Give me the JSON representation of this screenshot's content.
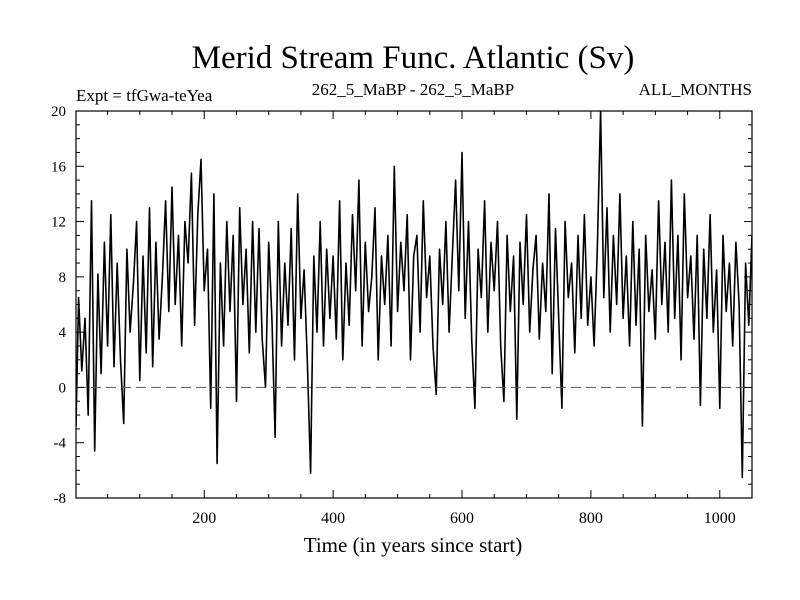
{
  "chart_data": {
    "type": "line",
    "title": "Merid Stream Func. Atlantic (Sv)",
    "subtitle_left": "Expt = tfGwa-teYea",
    "subtitle_center": "262_5_MaBP - 262_5_MaBP",
    "subtitle_right": "ALL_MONTHS",
    "xlabel": "Time (in years since start)",
    "ylabel": "",
    "xlim": [
      1,
      1050
    ],
    "ylim": [
      -8,
      20
    ],
    "xticks": [
      200,
      400,
      600,
      800,
      1000
    ],
    "yticks": [
      -8,
      -4,
      0,
      4,
      8,
      12,
      16,
      20
    ],
    "reference_line": {
      "y": 0,
      "style": "dashed"
    },
    "grid": false,
    "legend": "none",
    "line_color": "#000000",
    "series": [
      {
        "x": [
          1,
          5,
          10,
          15,
          20,
          25,
          30,
          35,
          40,
          45,
          50,
          55,
          60,
          65,
          70,
          75,
          80,
          85,
          90,
          95,
          100,
          105,
          110,
          115,
          120,
          125,
          130,
          135,
          140,
          145,
          150,
          155,
          160,
          165,
          170,
          175,
          180,
          185,
          190,
          195,
          200,
          205,
          210,
          215,
          220,
          225,
          230,
          235,
          240,
          245,
          250,
          255,
          260,
          265,
          270,
          275,
          280,
          285,
          290,
          295,
          300,
          305,
          310,
          315,
          320,
          325,
          330,
          335,
          340,
          345,
          350,
          355,
          360,
          365,
          370,
          375,
          380,
          385,
          390,
          395,
          400,
          405,
          410,
          415,
          420,
          425,
          430,
          435,
          440,
          445,
          450,
          455,
          460,
          465,
          470,
          475,
          480,
          485,
          490,
          495,
          500,
          505,
          510,
          515,
          520,
          525,
          530,
          535,
          540,
          545,
          550,
          555,
          560,
          565,
          570,
          575,
          580,
          585,
          590,
          595,
          600,
          605,
          610,
          615,
          620,
          625,
          630,
          635,
          640,
          645,
          650,
          655,
          660,
          665,
          670,
          675,
          680,
          685,
          690,
          695,
          700,
          705,
          710,
          715,
          720,
          725,
          730,
          735,
          740,
          745,
          750,
          755,
          760,
          765,
          770,
          775,
          780,
          785,
          790,
          795,
          800,
          805,
          810,
          815,
          820,
          825,
          830,
          835,
          840,
          845,
          850,
          855,
          860,
          865,
          870,
          875,
          880,
          885,
          890,
          895,
          900,
          905,
          910,
          915,
          920,
          925,
          930,
          935,
          940,
          945,
          950,
          955,
          960,
          965,
          970,
          975,
          980,
          985,
          990,
          995,
          1000,
          1005,
          1010,
          1015,
          1020,
          1025,
          1030,
          1035,
          1040,
          1045,
          1050
        ],
        "values": [
          -2.8,
          6.5,
          1.2,
          5.0,
          -2.0,
          13.5,
          -4.6,
          8.2,
          1.0,
          10.5,
          3.0,
          12.5,
          1.5,
          9.0,
          2.0,
          -2.6,
          10.0,
          4.0,
          7.5,
          12.0,
          0.5,
          9.5,
          2.5,
          13.0,
          1.5,
          10.5,
          3.5,
          8.0,
          13.5,
          5.5,
          14.5,
          6.0,
          11.0,
          3.0,
          12.0,
          9.0,
          15.5,
          4.5,
          12.5,
          16.5,
          7.0,
          10.0,
          -1.5,
          14.0,
          -5.5,
          9.0,
          3.0,
          12.0,
          5.5,
          11.0,
          -1.0,
          13.0,
          6.0,
          10.0,
          2.5,
          12.0,
          4.0,
          11.5,
          3.5,
          0.0,
          10.5,
          5.0,
          -3.6,
          12.0,
          3.0,
          9.0,
          4.5,
          11.5,
          2.0,
          14.0,
          5.0,
          8.5,
          2.0,
          -6.2,
          9.5,
          4.0,
          12.0,
          3.0,
          10.0,
          5.0,
          9.5,
          3.5,
          13.5,
          2.0,
          9.0,
          4.5,
          12.5,
          7.0,
          15.0,
          3.0,
          10.5,
          5.5,
          8.0,
          13.0,
          2.0,
          9.5,
          6.0,
          11.0,
          3.0,
          16.0,
          5.5,
          10.5,
          7.0,
          12.5,
          2.0,
          9.5,
          11.0,
          4.0,
          13.5,
          6.5,
          9.5,
          3.0,
          -0.5,
          10.0,
          6.0,
          12.0,
          4.0,
          9.5,
          15.0,
          7.0,
          17.0,
          5.0,
          12.0,
          3.5,
          -1.5,
          10.0,
          6.5,
          13.5,
          4.0,
          10.5,
          7.0,
          12.0,
          3.0,
          -1.0,
          11.0,
          5.5,
          9.5,
          -2.3,
          10.5,
          6.0,
          12.5,
          4.0,
          8.5,
          11.0,
          3.5,
          9.0,
          5.5,
          14.0,
          1.0,
          11.5,
          5.0,
          -1.5,
          12.0,
          6.5,
          9.0,
          2.5,
          11.0,
          5.0,
          12.5,
          4.5,
          8.0,
          3.0,
          10.0,
          20.0,
          6.5,
          13.0,
          4.0,
          11.0,
          6.0,
          14.0,
          5.0,
          9.5,
          3.0,
          12.0,
          4.5,
          10.0,
          -2.8,
          11.0,
          5.5,
          8.5,
          3.5,
          13.5,
          6.0,
          10.5,
          4.0,
          15.0,
          5.0,
          11.0,
          2.0,
          14.0,
          6.5,
          9.5,
          3.5,
          11.0,
          -1.3,
          10.0,
          5.0,
          12.5,
          4.0,
          8.5,
          -1.5,
          11.0,
          5.5,
          9.0,
          3.0,
          10.5,
          6.0,
          -6.5,
          9.0,
          4.5,
          11.0
        ]
      }
    ]
  }
}
